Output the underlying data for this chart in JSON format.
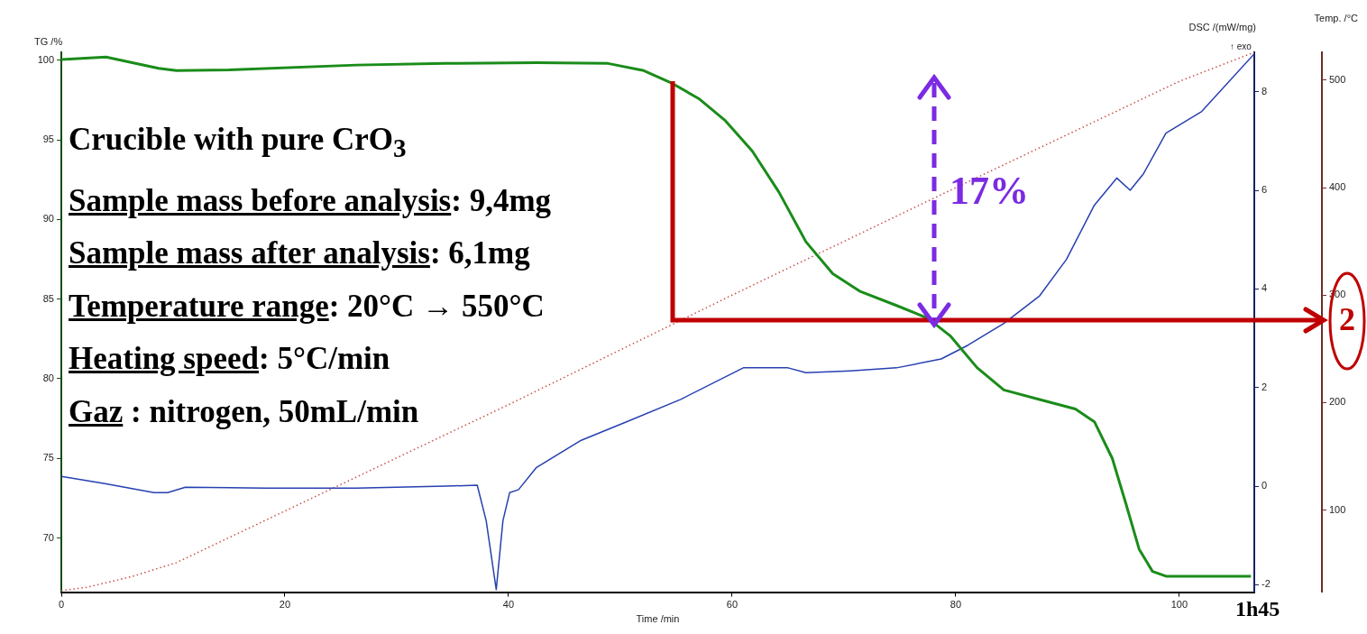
{
  "chart_data": {
    "type": "line",
    "xlabel": "Time /min",
    "ylabel": "TG /%",
    "y2label": "DSC /(mW/mg)",
    "y3label": "Temp. /°C",
    "xlim": [
      0,
      106.7
    ],
    "xticks": [
      0,
      20,
      40,
      60,
      80,
      100
    ],
    "ylim": [
      66.6,
      100.5
    ],
    "yticks": [
      70,
      75,
      80,
      85,
      90,
      95,
      100
    ],
    "y2lim": [
      -2.15,
      8.8
    ],
    "y2ticks": [
      -2,
      0,
      2,
      4,
      6,
      8
    ],
    "y3lim": [
      23.5,
      526
    ],
    "y3ticks": [
      100,
      200,
      300,
      400,
      500
    ],
    "grid": false,
    "legend": false,
    "marker": "none",
    "series": [
      {
        "color": "#1a8c1a",
        "axis": "y",
        "line_style": "solid",
        "x": [
          0,
          4,
          8.7,
          10.3,
          15,
          26.4,
          34.4,
          42.5,
          48.9,
          52.1,
          54.5,
          57,
          59.4,
          61.8,
          64.2,
          66.6,
          69,
          71.4,
          74.7,
          77.5,
          79.5,
          81.9,
          84.3,
          87.5,
          90.7,
          92.4,
          94,
          95.2,
          96.4,
          97.6,
          98.8,
          106.4
        ],
        "values": [
          100.05,
          100.2,
          99.5,
          99.35,
          99.4,
          99.7,
          99.8,
          99.85,
          99.8,
          99.35,
          98.6,
          97.6,
          96.2,
          94.3,
          91.7,
          88.6,
          86.6,
          85.5,
          84.6,
          83.8,
          82.7,
          80.7,
          79.3,
          78.7,
          78.1,
          77.3,
          75,
          72.2,
          69.3,
          67.9,
          67.6,
          67.6
        ]
      },
      {
        "color": "#2740b0",
        "axis": "y2",
        "line_style": "solid",
        "x": [
          0,
          3.9,
          8.3,
          9.5,
          11.1,
          18.3,
          26.4,
          34.4,
          37.2,
          38,
          38.9,
          39.5,
          40.1,
          40.9,
          42.5,
          46.5,
          50.5,
          55.4,
          61,
          65,
          66.6,
          70.6,
          74.7,
          78.7,
          81.1,
          84.3,
          87.5,
          89.9,
          92.4,
          94.4,
          95.6,
          96.8,
          98.8,
          102,
          106.7
        ],
        "values": [
          0.2,
          0.05,
          -0.13,
          -0.13,
          -0.02,
          -0.04,
          -0.04,
          0,
          0.02,
          -0.7,
          -2.1,
          -0.7,
          -0.13,
          -0.07,
          0.38,
          0.93,
          1.3,
          1.76,
          2.4,
          2.4,
          2.3,
          2.34,
          2.4,
          2.58,
          2.86,
          3.3,
          3.86,
          4.6,
          5.7,
          6.25,
          6,
          6.34,
          7.16,
          7.6,
          8.77
        ]
      },
      {
        "color": "#c8504a",
        "axis": "y3",
        "line_style": "dotted",
        "x": [
          0,
          2.3,
          6.3,
          10.3,
          20,
          40,
          60,
          80,
          100,
          106.7
        ],
        "values": [
          25,
          28,
          38,
          51,
          99,
          198,
          300,
          400,
          499,
          526
        ]
      }
    ],
    "annotations": [
      "Crucible with pure CrO$_{3}$",
      "Sample mass before analysis: 9,4mg",
      "Sample mass after analysis: 6,1mg",
      "Temperature range: 20°C → 550°C",
      "Heating speed: 5°C/min",
      "Gaz : nitrogen, 50mL/min",
      "17%",
      "1h45",
      "2",
      "↑ exo"
    ]
  }
}
